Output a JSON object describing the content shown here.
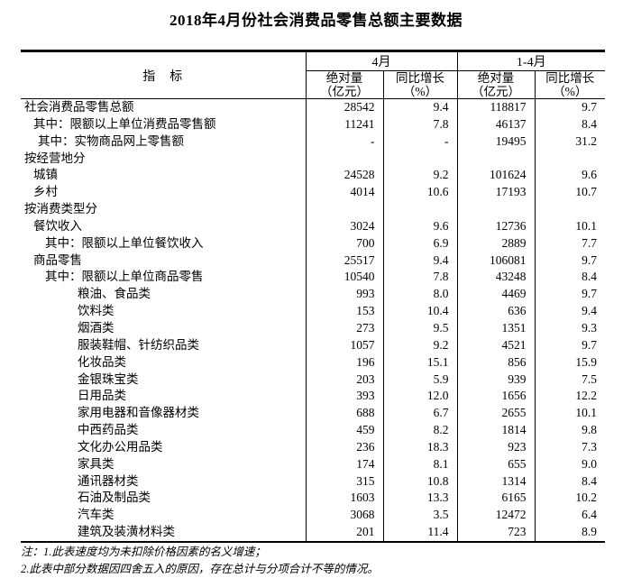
{
  "title": "2018年4月份社会消费品零售总额主要数据",
  "table": {
    "indicator_header": "指　标",
    "groups": [
      {
        "label": "4月"
      },
      {
        "label": "1-4月"
      }
    ],
    "sub_headers": [
      {
        "line1": "绝对量",
        "line2": "（亿元）"
      },
      {
        "line1": "同比增长",
        "line2": "（%）"
      },
      {
        "line1": "绝对量",
        "line2": "（亿元）"
      },
      {
        "line1": "同比增长",
        "line2": "（%）"
      }
    ],
    "rows": [
      {
        "label": "社会消费品零售总额",
        "level": 0,
        "values": [
          "28542",
          "9.4",
          "118817",
          "9.7"
        ]
      },
      {
        "label": "其中：限额以上单位消费品零售额",
        "level": 1,
        "values": [
          "11241",
          "7.8",
          "46137",
          "8.4"
        ]
      },
      {
        "label": "其中：实物商品网上零售额",
        "level": 2,
        "values": [
          "-",
          "-",
          "19495",
          "31.2"
        ]
      },
      {
        "label": "按经营地分",
        "level": 0,
        "values": [
          "",
          "",
          "",
          ""
        ]
      },
      {
        "label": "城镇",
        "level": 1,
        "values": [
          "24528",
          "9.2",
          "101624",
          "9.6"
        ]
      },
      {
        "label": "乡村",
        "level": 1,
        "values": [
          "4014",
          "10.6",
          "17193",
          "10.7"
        ]
      },
      {
        "label": "按消费类型分",
        "level": 0,
        "values": [
          "",
          "",
          "",
          ""
        ]
      },
      {
        "label": "餐饮收入",
        "level": 1,
        "values": [
          "3024",
          "9.6",
          "12736",
          "10.1"
        ]
      },
      {
        "label": "其中：限额以上单位餐饮收入",
        "level": 3,
        "values": [
          "700",
          "6.9",
          "2889",
          "7.7"
        ]
      },
      {
        "label": "商品零售",
        "level": 1,
        "values": [
          "25517",
          "9.4",
          "106081",
          "9.7"
        ]
      },
      {
        "label": "其中：限额以上单位商品零售",
        "level": 3,
        "values": [
          "10540",
          "7.8",
          "43248",
          "8.4"
        ]
      },
      {
        "label": "粮油、食品类",
        "level": 4,
        "values": [
          "993",
          "8.0",
          "4469",
          "9.7"
        ]
      },
      {
        "label": "饮料类",
        "level": 4,
        "values": [
          "153",
          "10.4",
          "636",
          "9.4"
        ]
      },
      {
        "label": "烟酒类",
        "level": 4,
        "values": [
          "273",
          "9.5",
          "1351",
          "9.3"
        ]
      },
      {
        "label": "服装鞋帽、针纺织品类",
        "level": 4,
        "values": [
          "1057",
          "9.2",
          "4521",
          "9.7"
        ]
      },
      {
        "label": "化妆品类",
        "level": 4,
        "values": [
          "196",
          "15.1",
          "856",
          "15.9"
        ]
      },
      {
        "label": "金银珠宝类",
        "level": 4,
        "values": [
          "203",
          "5.9",
          "939",
          "7.5"
        ]
      },
      {
        "label": "日用品类",
        "level": 4,
        "values": [
          "393",
          "12.0",
          "1656",
          "12.2"
        ]
      },
      {
        "label": "家用电器和音像器材类",
        "level": 4,
        "values": [
          "688",
          "6.7",
          "2655",
          "10.1"
        ]
      },
      {
        "label": "中西药品类",
        "level": 4,
        "values": [
          "459",
          "8.2",
          "1814",
          "9.8"
        ]
      },
      {
        "label": "文化办公用品类",
        "level": 4,
        "values": [
          "236",
          "18.3",
          "923",
          "7.3"
        ]
      },
      {
        "label": "家具类",
        "level": 4,
        "values": [
          "174",
          "8.1",
          "655",
          "9.0"
        ]
      },
      {
        "label": "通讯器材类",
        "level": 4,
        "values": [
          "315",
          "10.8",
          "1314",
          "8.4"
        ]
      },
      {
        "label": "石油及制品类",
        "level": 4,
        "values": [
          "1603",
          "13.3",
          "6165",
          "10.2"
        ]
      },
      {
        "label": "汽车类",
        "level": 4,
        "values": [
          "3068",
          "3.5",
          "12472",
          "6.4"
        ]
      },
      {
        "label": "建筑及装潢材料类",
        "level": 4,
        "values": [
          "201",
          "11.4",
          "723",
          "8.9"
        ]
      }
    ]
  },
  "notes": [
    "注：1.此表速度均为未扣除价格因素的名义增速；",
    "2.此表中部分数据因四舍五入的原因，存在总计与分项合计不等的情况。"
  ]
}
